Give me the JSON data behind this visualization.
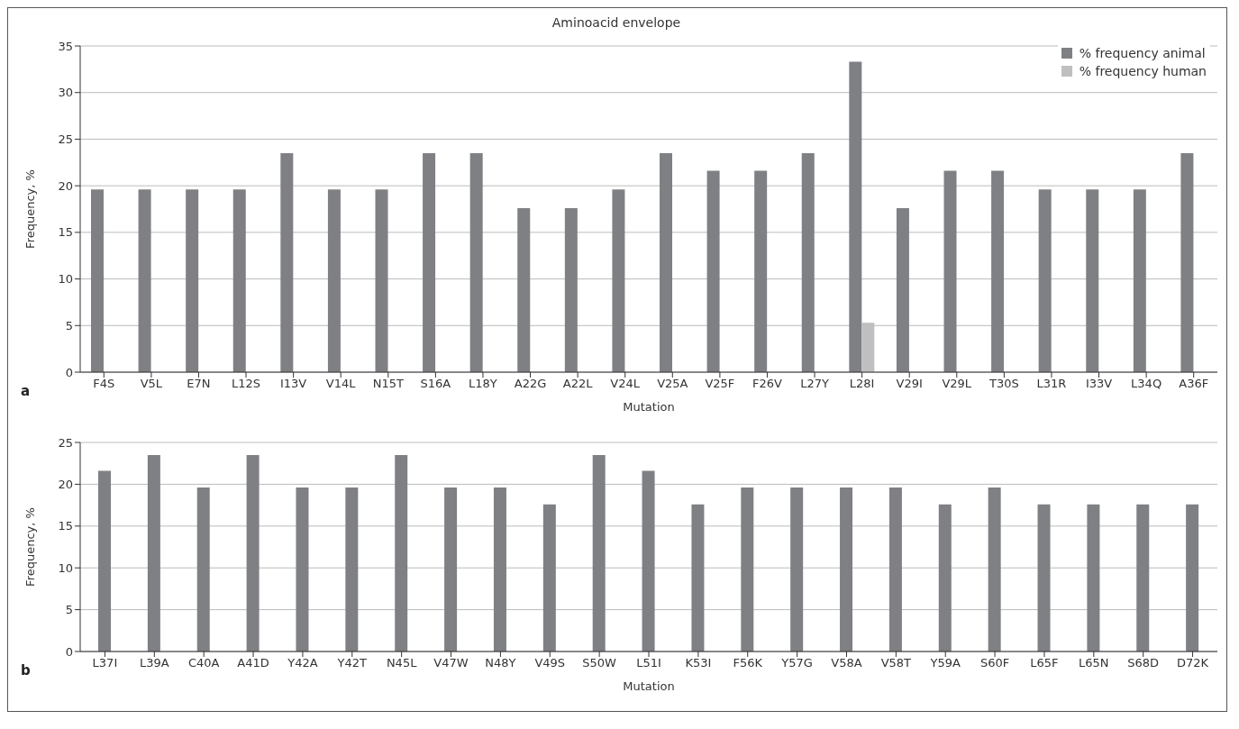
{
  "chart_data": [
    {
      "type": "bar",
      "title": "Aminoacid envelope",
      "xlabel": "Mutation",
      "ylabel": "Frequency, %",
      "categories": [
        "F4S",
        "V5L",
        "E7N",
        "L12S",
        "I13V",
        "V14L",
        "N15T",
        "S16A",
        "L18Y",
        "A22G",
        "A22L",
        "V24L",
        "V25A",
        "V25F",
        "F26V",
        "L27Y",
        "L28I",
        "V29I",
        "V29L",
        "T30S",
        "L31R",
        "I33V",
        "L34Q",
        "A36F"
      ],
      "series": [
        {
          "name": "% frequency animal",
          "color": "#7f8084",
          "values": [
            19.6,
            19.6,
            19.6,
            19.6,
            23.5,
            19.6,
            19.6,
            23.5,
            23.5,
            17.6,
            17.6,
            19.6,
            23.5,
            21.6,
            21.6,
            23.5,
            33.3,
            17.6,
            21.6,
            21.6,
            19.6,
            19.6,
            19.6,
            23.5
          ]
        },
        {
          "name": "% frequency human",
          "color": "#bfbfc1",
          "values": [
            null,
            null,
            null,
            null,
            null,
            null,
            null,
            null,
            null,
            null,
            null,
            null,
            null,
            null,
            null,
            null,
            5.3,
            null,
            null,
            null,
            null,
            null,
            null,
            null
          ]
        }
      ],
      "ylim": [
        0,
        35
      ],
      "yticks": [
        0,
        5,
        10,
        15,
        20,
        25,
        30,
        35
      ],
      "grid": "y",
      "legend": "top right",
      "annotations": [
        "a"
      ]
    },
    {
      "type": "bar",
      "xlabel": "Mutation",
      "ylabel": "Frequency, %",
      "categories": [
        "L37I",
        "L39A",
        "C40A",
        "A41D",
        "Y42A",
        "Y42T",
        "N45L",
        "V47W",
        "N48Y",
        "V49S",
        "S50W",
        "L51I",
        "K53I",
        "F56K",
        "Y57G",
        "V58A",
        "V58T",
        "Y59A",
        "S60F",
        "L65F",
        "L65N",
        "S68D",
        "D72K"
      ],
      "series": [
        {
          "color": "#7f8084",
          "values": [
            21.6,
            23.5,
            19.6,
            23.5,
            19.6,
            19.6,
            23.5,
            19.6,
            19.6,
            17.6,
            23.5,
            21.6,
            17.6,
            19.6,
            19.6,
            19.6,
            19.6,
            17.6,
            19.6,
            17.6,
            17.6,
            17.6,
            17.6
          ]
        }
      ],
      "ylim": [
        0,
        25
      ],
      "yticks": [
        0,
        5,
        10,
        15,
        20,
        25
      ],
      "grid": "y",
      "annotations": [
        "b"
      ]
    }
  ]
}
